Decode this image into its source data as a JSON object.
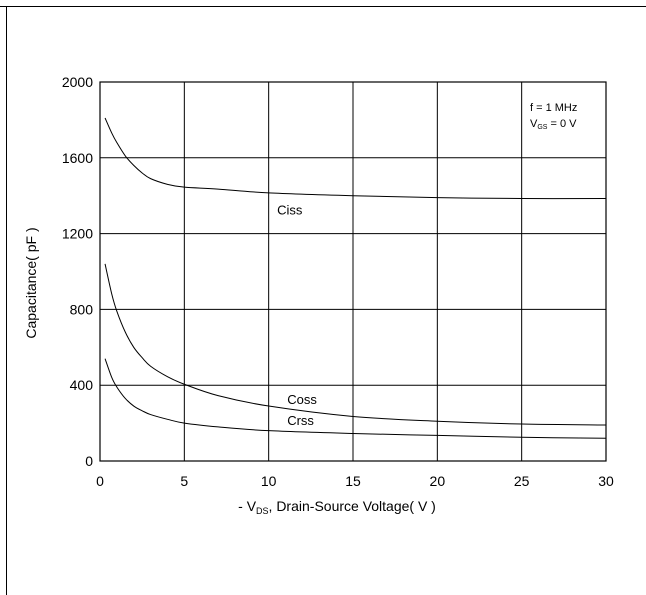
{
  "chart_data": {
    "type": "line",
    "xlim": [
      0,
      30
    ],
    "ylim": [
      0,
      2000
    ],
    "x_ticks": [
      "0",
      "5",
      "10",
      "15",
      "20",
      "25",
      "30"
    ],
    "y_ticks": [
      "0",
      "400",
      "800",
      "1200",
      "1600",
      "2000"
    ],
    "xlabel": {
      "prefix": "- V",
      "sub": "DS",
      "suffix": ", Drain-Source Voltage( V )"
    },
    "ylabel": "Capacitance( pF )",
    "grid": true,
    "annotations": {
      "line1": "f = 1 MHz",
      "line2_prefix": "V",
      "line2_sub": "GS",
      "line2_suffix": " = 0 V"
    },
    "series": [
      {
        "name": "Ciss",
        "x": [
          0.3,
          0.7,
          1,
          1.5,
          2,
          2.5,
          3,
          4,
          5,
          7,
          10,
          15,
          20,
          25,
          30
        ],
        "y": [
          1810,
          1730,
          1680,
          1610,
          1560,
          1520,
          1490,
          1460,
          1445,
          1435,
          1415,
          1400,
          1390,
          1385,
          1385
        ]
      },
      {
        "name": "Coss",
        "x": [
          0.3,
          0.7,
          1,
          1.5,
          2,
          2.5,
          3,
          4,
          5,
          7,
          10,
          15,
          20,
          25,
          30
        ],
        "y": [
          1040,
          880,
          790,
          680,
          600,
          545,
          500,
          445,
          405,
          345,
          290,
          235,
          210,
          195,
          190
        ]
      },
      {
        "name": "Crss",
        "x": [
          0.3,
          0.7,
          1,
          1.5,
          2,
          2.5,
          3,
          4,
          5,
          7,
          10,
          15,
          20,
          25,
          30
        ],
        "y": [
          540,
          440,
          390,
          330,
          290,
          265,
          245,
          220,
          200,
          180,
          160,
          145,
          135,
          125,
          120
        ]
      }
    ],
    "series_labels": [
      {
        "name": "Ciss",
        "x": 10.5,
        "y": 1300
      },
      {
        "name": "Coss",
        "x": 11.1,
        "y": 300
      },
      {
        "name": "Crss",
        "x": 11.1,
        "y": 190
      }
    ]
  }
}
